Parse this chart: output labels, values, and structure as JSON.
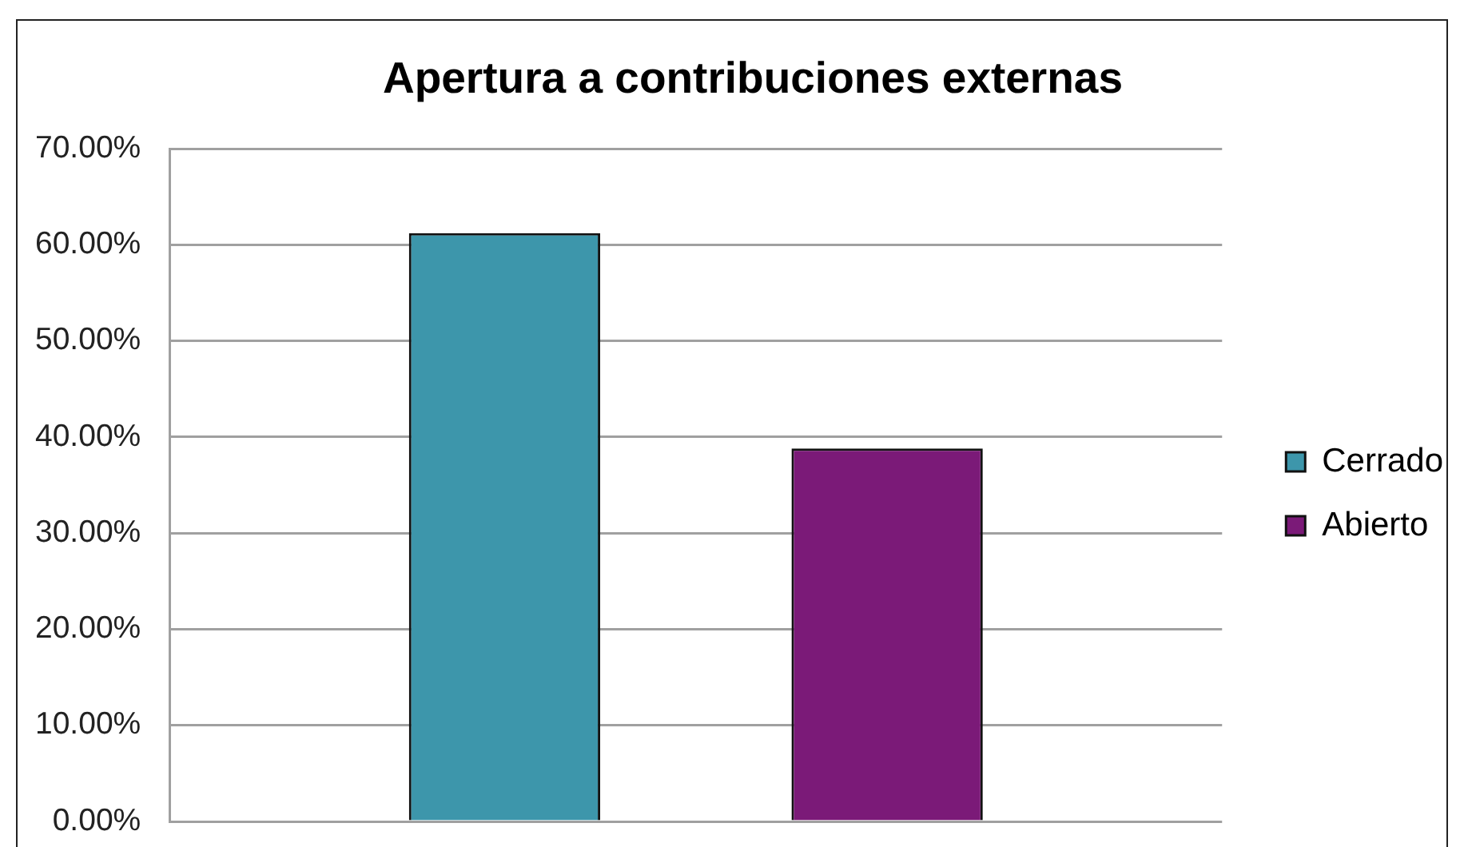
{
  "chart_data": {
    "type": "bar",
    "title": "Apertura a contribuciones externas",
    "categories": [
      null
    ],
    "series": [
      {
        "name": "Cerrado",
        "color": "#3d96ab",
        "values": [
          61.2
        ]
      },
      {
        "name": "Abierto",
        "color": "#7b1a78",
        "values": [
          38.8
        ]
      }
    ],
    "ylim": [
      0,
      70
    ],
    "yticks": [
      {
        "value": 0,
        "label": "0.00%"
      },
      {
        "value": 10,
        "label": "10.00%"
      },
      {
        "value": 20,
        "label": "20.00%"
      },
      {
        "value": 30,
        "label": "30.00%"
      },
      {
        "value": 40,
        "label": "40.00%"
      },
      {
        "value": 50,
        "label": "50.00%"
      },
      {
        "value": 60,
        "label": "60.00%"
      },
      {
        "value": 70,
        "label": "70.00%"
      }
    ],
    "grid": "y",
    "legend": "right"
  }
}
